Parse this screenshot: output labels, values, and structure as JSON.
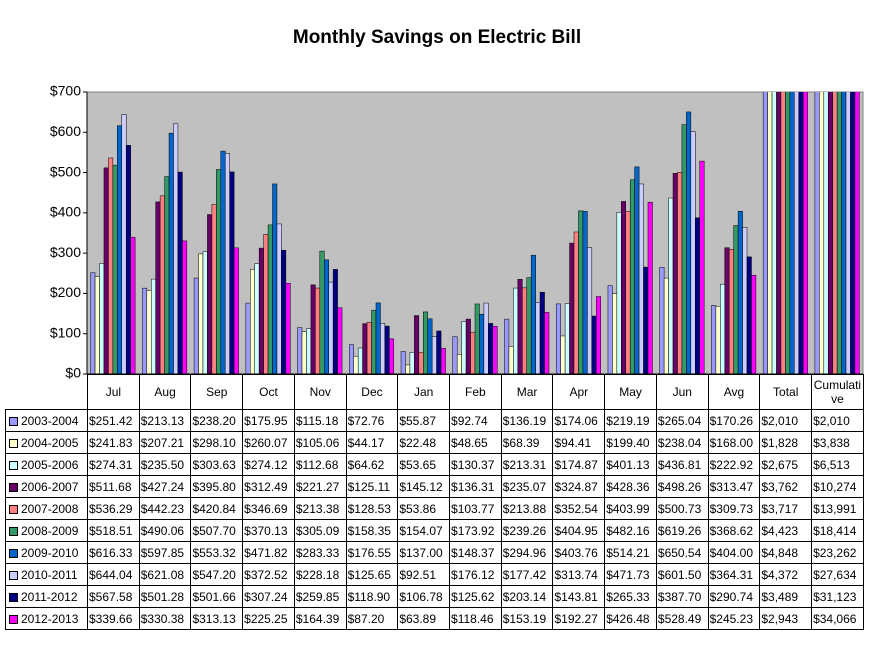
{
  "chart_data": {
    "type": "bar",
    "title": "Monthly Savings on Electric Bill",
    "categories": [
      "Jul",
      "Aug",
      "Sep",
      "Oct",
      "Nov",
      "Dec",
      "Jan",
      "Feb",
      "Mar",
      "Apr",
      "May",
      "Jun",
      "Avg",
      "Total",
      "Cumulative"
    ],
    "ylim": [
      0,
      700
    ],
    "yticks": [
      {
        "value": 0,
        "label": "$0"
      },
      {
        "value": 100,
        "label": "$100"
      },
      {
        "value": 200,
        "label": "$200"
      },
      {
        "value": 300,
        "label": "$300"
      },
      {
        "value": 400,
        "label": "$400"
      },
      {
        "value": 500,
        "label": "$500"
      },
      {
        "value": 600,
        "label": "$600"
      },
      {
        "value": 700,
        "label": "$700"
      }
    ],
    "grid": false,
    "series": [
      {
        "name": "2003-2004",
        "color": "#9999ff",
        "values": [
          251.42,
          213.13,
          238.2,
          175.95,
          115.18,
          72.76,
          55.87,
          92.74,
          136.19,
          174.06,
          219.19,
          265.04,
          170.26,
          2010,
          2010
        ],
        "value_labels": [
          "$251.42",
          "$213.13",
          "$238.20",
          "$175.95",
          "$115.18",
          "$72.76",
          "$55.87",
          "$92.74",
          "$136.19",
          "$174.06",
          "$219.19",
          "$265.04",
          "$170.26",
          "$2,010",
          "$2,010"
        ]
      },
      {
        "name": "2004-2005",
        "color": "#ffffcc",
        "values": [
          241.83,
          207.21,
          298.1,
          260.07,
          105.06,
          44.17,
          22.48,
          48.65,
          68.39,
          94.41,
          199.4,
          238.04,
          168.0,
          1828,
          3838
        ],
        "value_labels": [
          "$241.83",
          "$207.21",
          "$298.10",
          "$260.07",
          "$105.06",
          "$44.17",
          "$22.48",
          "$48.65",
          "$68.39",
          "$94.41",
          "$199.40",
          "$238.04",
          "$168.00",
          "$1,828",
          "$3,838"
        ]
      },
      {
        "name": "2005-2006",
        "color": "#ccffff",
        "values": [
          274.31,
          235.5,
          303.63,
          274.12,
          112.68,
          64.62,
          53.65,
          130.37,
          213.31,
          174.87,
          401.13,
          436.81,
          222.92,
          2675,
          6513
        ],
        "value_labels": [
          "$274.31",
          "$235.50",
          "$303.63",
          "$274.12",
          "$112.68",
          "$64.62",
          "$53.65",
          "$130.37",
          "$213.31",
          "$174.87",
          "$401.13",
          "$436.81",
          "$222.92",
          "$2,675",
          "$6,513"
        ]
      },
      {
        "name": "2006-2007",
        "color": "#660066",
        "values": [
          511.68,
          427.24,
          395.8,
          312.49,
          221.27,
          125.11,
          145.12,
          136.31,
          235.07,
          324.87,
          428.36,
          498.26,
          313.47,
          3762,
          10274
        ],
        "value_labels": [
          "$511.68",
          "$427.24",
          "$395.80",
          "$312.49",
          "$221.27",
          "$125.11",
          "$145.12",
          "$136.31",
          "$235.07",
          "$324.87",
          "$428.36",
          "$498.26",
          "$313.47",
          "$3,762",
          "$10,274"
        ]
      },
      {
        "name": "2007-2008",
        "color": "#ff8080",
        "values": [
          536.29,
          442.23,
          420.84,
          346.69,
          213.38,
          128.53,
          53.86,
          103.77,
          213.88,
          352.54,
          403.99,
          500.73,
          309.73,
          3717,
          13991
        ],
        "value_labels": [
          "$536.29",
          "$442.23",
          "$420.84",
          "$346.69",
          "$213.38",
          "$128.53",
          "$53.86",
          "$103.77",
          "$213.88",
          "$352.54",
          "$403.99",
          "$500.73",
          "$309.73",
          "$3,717",
          "$13,991"
        ]
      },
      {
        "name": "2008-2009",
        "color": "#339966",
        "values": [
          518.51,
          490.06,
          507.7,
          370.13,
          305.09,
          158.35,
          154.07,
          173.92,
          239.26,
          404.95,
          482.16,
          619.26,
          368.62,
          4423,
          18414
        ],
        "value_labels": [
          "$518.51",
          "$490.06",
          "$507.70",
          "$370.13",
          "$305.09",
          "$158.35",
          "$154.07",
          "$173.92",
          "$239.26",
          "$404.95",
          "$482.16",
          "$619.26",
          "$368.62",
          "$4,423",
          "$18,414"
        ]
      },
      {
        "name": "2009-2010",
        "color": "#0066cc",
        "values": [
          616.33,
          597.85,
          553.32,
          471.82,
          283.33,
          176.55,
          137.0,
          148.37,
          294.96,
          403.76,
          514.21,
          650.54,
          404.0,
          4848,
          23262
        ],
        "value_labels": [
          "$616.33",
          "$597.85",
          "$553.32",
          "$471.82",
          "$283.33",
          "$176.55",
          "$137.00",
          "$148.37",
          "$294.96",
          "$403.76",
          "$514.21",
          "$650.54",
          "$404.00",
          "$4,848",
          "$23,262"
        ]
      },
      {
        "name": "2010-2011",
        "color": "#ccccff",
        "values": [
          644.04,
          621.08,
          547.2,
          372.52,
          228.18,
          125.65,
          92.51,
          176.12,
          177.42,
          313.74,
          471.73,
          601.5,
          364.31,
          4372,
          27634
        ],
        "value_labels": [
          "$644.04",
          "$621.08",
          "$547.20",
          "$372.52",
          "$228.18",
          "$125.65",
          "$92.51",
          "$176.12",
          "$177.42",
          "$313.74",
          "$471.73",
          "$601.50",
          "$364.31",
          "$4,372",
          "$27,634"
        ]
      },
      {
        "name": "2011-2012",
        "color": "#000080",
        "values": [
          567.58,
          501.28,
          501.66,
          307.24,
          259.85,
          118.9,
          106.78,
          125.62,
          203.14,
          143.81,
          265.33,
          387.7,
          290.74,
          3489,
          31123
        ],
        "value_labels": [
          "$567.58",
          "$501.28",
          "$501.66",
          "$307.24",
          "$259.85",
          "$118.90",
          "$106.78",
          "$125.62",
          "$203.14",
          "$143.81",
          "$265.33",
          "$387.70",
          "$290.74",
          "$3,489",
          "$31,123"
        ]
      },
      {
        "name": "2012-2013",
        "color": "#ff00ff",
        "values": [
          339.66,
          330.38,
          313.13,
          225.25,
          164.39,
          87.2,
          63.89,
          118.46,
          153.19,
          192.27,
          426.48,
          528.49,
          245.23,
          2943,
          34066
        ],
        "value_labels": [
          "$339.66",
          "$330.38",
          "$313.13",
          "$225.25",
          "$164.39",
          "$87.20",
          "$63.89",
          "$118.46",
          "$153.19",
          "$192.27",
          "$426.48",
          "$528.49",
          "$245.23",
          "$2,943",
          "$34,066"
        ]
      }
    ]
  }
}
